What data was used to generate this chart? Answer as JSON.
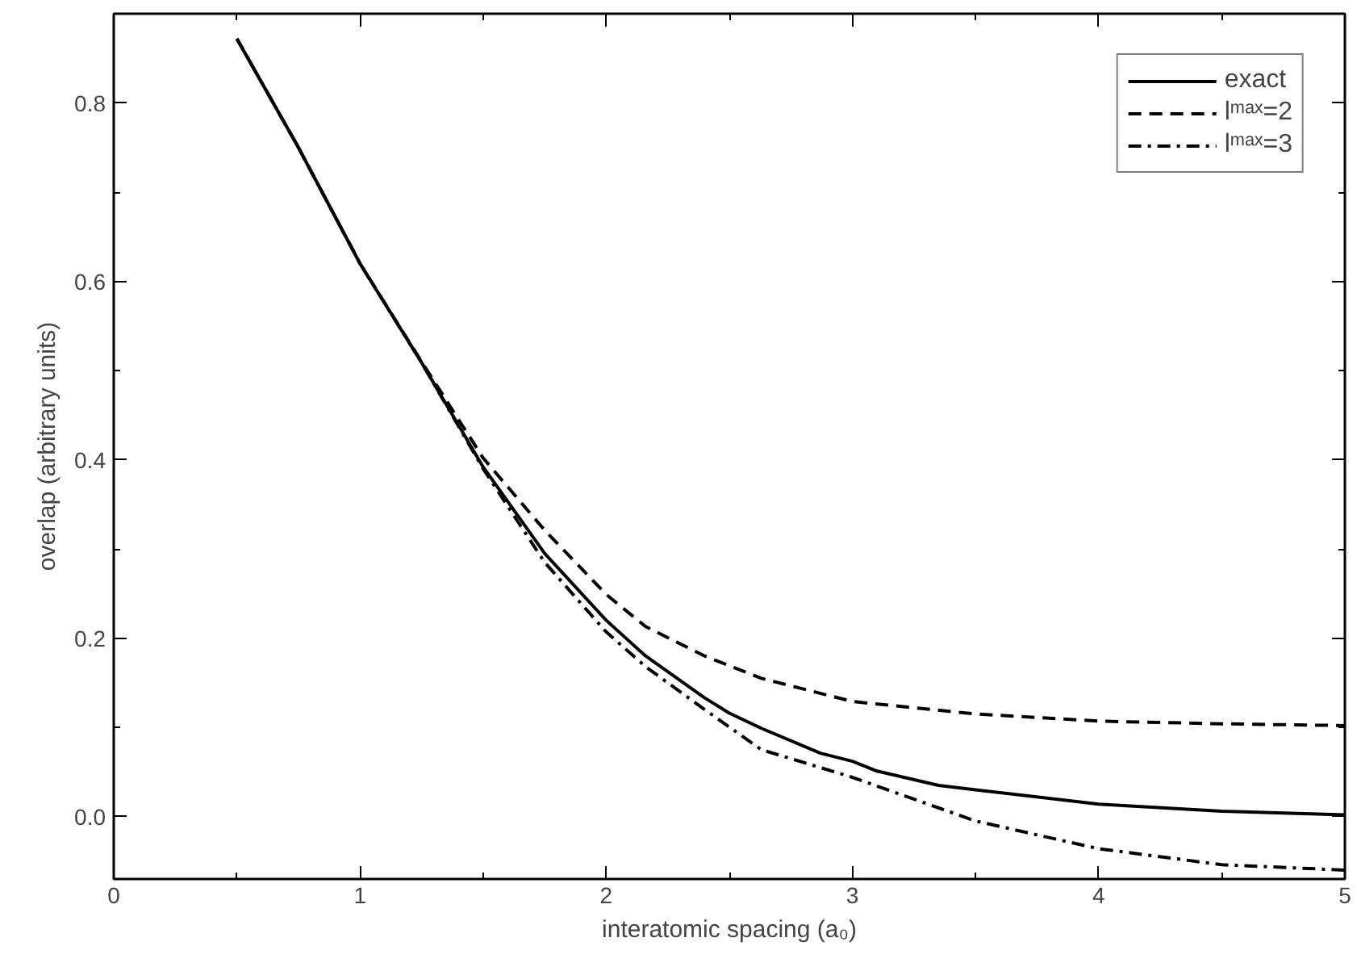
{
  "chart_data": {
    "type": "line",
    "xlabel": "interatomic spacing (a₀)",
    "ylabel": "overlap (arbitrary units)",
    "xlim": [
      0,
      5
    ],
    "ylim": [
      -0.07,
      0.9
    ],
    "xticks": [
      0,
      1,
      2,
      3,
      4,
      5
    ],
    "yticks": [
      {
        "value": 0,
        "label": "0.0"
      },
      0.2,
      0.4,
      0.6,
      0.8
    ],
    "grid": false,
    "legend": "top right",
    "marker": "none",
    "series": [
      {
        "name": "exact",
        "color": "#000000",
        "line_style": "solid",
        "x": [
          0.5,
          0.75,
          1,
          1.25,
          1.5,
          1.75,
          2,
          2.16,
          2.4,
          2.5,
          2.63,
          2.87,
          3,
          3.1,
          3.35,
          3.5,
          4,
          4.5,
          5
        ],
        "values": [
          0.872,
          0.75,
          0.62,
          0.509,
          0.392,
          0.295,
          0.22,
          0.18,
          0.133,
          0.116,
          0.099,
          0.071,
          0.062,
          0.051,
          0.035,
          0.03,
          0.014,
          0.006,
          0.002
        ]
      },
      {
        "name": "lᵐᵃˣ=2",
        "color": "#000000",
        "line_style": "dashed",
        "x": [
          0.5,
          0.75,
          1,
          1.25,
          1.5,
          1.75,
          2,
          2.16,
          2.4,
          2.63,
          3,
          3.5,
          4,
          4.5,
          5
        ],
        "values": [
          0.872,
          0.75,
          0.62,
          0.51,
          0.402,
          0.321,
          0.249,
          0.213,
          0.18,
          0.155,
          0.129,
          0.115,
          0.107,
          0.104,
          0.102
        ]
      },
      {
        "name": "lᵐᵃˣ=3",
        "color": "#000000",
        "line_style": "dashdot",
        "x": [
          0.5,
          0.75,
          1,
          1.25,
          1.5,
          1.75,
          2,
          2.16,
          2.4,
          2.63,
          3,
          3.5,
          4,
          4.5,
          5
        ],
        "values": [
          0.872,
          0.75,
          0.62,
          0.509,
          0.39,
          0.285,
          0.207,
          0.168,
          0.12,
          0.075,
          0.044,
          -0.005,
          -0.036,
          -0.054,
          -0.06
        ]
      }
    ]
  }
}
